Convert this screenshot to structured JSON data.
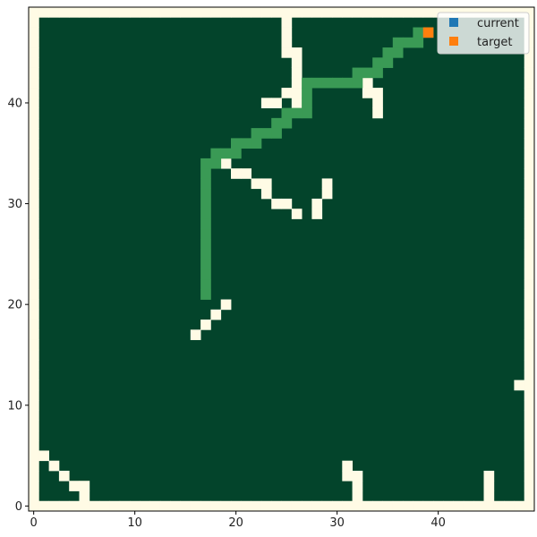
{
  "chart_data": {
    "type": "heatmap",
    "title": "",
    "xlabel": "",
    "ylabel": "",
    "xlim": [
      -0.5,
      49.5
    ],
    "ylim": [
      -0.5,
      49.5
    ],
    "x_ticks": [
      0,
      10,
      20,
      30,
      40
    ],
    "y_ticks": [
      0,
      10,
      20,
      30,
      40
    ],
    "grid": false,
    "legend_position": "top-right",
    "colors": {
      "background": "#03442b",
      "obstacle": "#fffbe5",
      "path": "#3a9a55",
      "current": "#1f77b4",
      "target": "#ff7f0e"
    },
    "legend": [
      {
        "name": "current",
        "color": "#1f77b4"
      },
      {
        "name": "target",
        "color": "#ff7f0e"
      }
    ],
    "obstacles": [
      [
        0,
        0
      ],
      [
        1,
        0
      ],
      [
        2,
        0
      ],
      [
        3,
        0
      ],
      [
        4,
        0
      ],
      [
        5,
        0
      ],
      [
        6,
        0
      ],
      [
        7,
        0
      ],
      [
        8,
        0
      ],
      [
        9,
        0
      ],
      [
        10,
        0
      ],
      [
        11,
        0
      ],
      [
        12,
        0
      ],
      [
        13,
        0
      ],
      [
        14,
        0
      ],
      [
        15,
        0
      ],
      [
        16,
        0
      ],
      [
        17,
        0
      ],
      [
        18,
        0
      ],
      [
        19,
        0
      ],
      [
        20,
        0
      ],
      [
        21,
        0
      ],
      [
        22,
        0
      ],
      [
        23,
        0
      ],
      [
        24,
        0
      ],
      [
        25,
        0
      ],
      [
        26,
        0
      ],
      [
        27,
        0
      ],
      [
        28,
        0
      ],
      [
        29,
        0
      ],
      [
        30,
        0
      ],
      [
        31,
        0
      ],
      [
        32,
        0
      ],
      [
        33,
        0
      ],
      [
        34,
        0
      ],
      [
        35,
        0
      ],
      [
        36,
        0
      ],
      [
        37,
        0
      ],
      [
        38,
        0
      ],
      [
        39,
        0
      ],
      [
        40,
        0
      ],
      [
        41,
        0
      ],
      [
        42,
        0
      ],
      [
        43,
        0
      ],
      [
        44,
        0
      ],
      [
        45,
        0
      ],
      [
        46,
        0
      ],
      [
        47,
        0
      ],
      [
        48,
        0
      ],
      [
        49,
        0
      ],
      [
        0,
        49
      ],
      [
        1,
        49
      ],
      [
        2,
        49
      ],
      [
        3,
        49
      ],
      [
        4,
        49
      ],
      [
        5,
        49
      ],
      [
        6,
        49
      ],
      [
        7,
        49
      ],
      [
        8,
        49
      ],
      [
        9,
        49
      ],
      [
        10,
        49
      ],
      [
        11,
        49
      ],
      [
        12,
        49
      ],
      [
        13,
        49
      ],
      [
        14,
        49
      ],
      [
        15,
        49
      ],
      [
        16,
        49
      ],
      [
        17,
        49
      ],
      [
        18,
        49
      ],
      [
        19,
        49
      ],
      [
        20,
        49
      ],
      [
        21,
        49
      ],
      [
        22,
        49
      ],
      [
        23,
        49
      ],
      [
        24,
        49
      ],
      [
        25,
        49
      ],
      [
        26,
        49
      ],
      [
        27,
        49
      ],
      [
        28,
        49
      ],
      [
        29,
        49
      ],
      [
        30,
        49
      ],
      [
        31,
        49
      ],
      [
        32,
        49
      ],
      [
        33,
        49
      ],
      [
        34,
        49
      ],
      [
        35,
        49
      ],
      [
        36,
        49
      ],
      [
        37,
        49
      ],
      [
        38,
        49
      ],
      [
        39,
        49
      ],
      [
        40,
        49
      ],
      [
        41,
        49
      ],
      [
        42,
        49
      ],
      [
        43,
        49
      ],
      [
        44,
        49
      ],
      [
        45,
        49
      ],
      [
        46,
        49
      ],
      [
        47,
        49
      ],
      [
        48,
        49
      ],
      [
        49,
        49
      ],
      [
        0,
        1
      ],
      [
        0,
        2
      ],
      [
        0,
        3
      ],
      [
        0,
        4
      ],
      [
        0,
        5
      ],
      [
        0,
        6
      ],
      [
        0,
        7
      ],
      [
        0,
        8
      ],
      [
        0,
        9
      ],
      [
        0,
        10
      ],
      [
        0,
        11
      ],
      [
        0,
        12
      ],
      [
        0,
        13
      ],
      [
        0,
        14
      ],
      [
        0,
        15
      ],
      [
        0,
        16
      ],
      [
        0,
        17
      ],
      [
        0,
        18
      ],
      [
        0,
        19
      ],
      [
        0,
        20
      ],
      [
        0,
        21
      ],
      [
        0,
        22
      ],
      [
        0,
        23
      ],
      [
        0,
        24
      ],
      [
        0,
        25
      ],
      [
        0,
        26
      ],
      [
        0,
        27
      ],
      [
        0,
        28
      ],
      [
        0,
        29
      ],
      [
        0,
        30
      ],
      [
        0,
        31
      ],
      [
        0,
        32
      ],
      [
        0,
        33
      ],
      [
        0,
        34
      ],
      [
        0,
        35
      ],
      [
        0,
        36
      ],
      [
        0,
        37
      ],
      [
        0,
        38
      ],
      [
        0,
        39
      ],
      [
        0,
        40
      ],
      [
        0,
        41
      ],
      [
        0,
        42
      ],
      [
        0,
        43
      ],
      [
        0,
        44
      ],
      [
        0,
        45
      ],
      [
        0,
        46
      ],
      [
        0,
        47
      ],
      [
        0,
        48
      ],
      [
        49,
        1
      ],
      [
        49,
        2
      ],
      [
        49,
        3
      ],
      [
        49,
        4
      ],
      [
        49,
        5
      ],
      [
        49,
        6
      ],
      [
        49,
        7
      ],
      [
        49,
        8
      ],
      [
        49,
        9
      ],
      [
        49,
        10
      ],
      [
        49,
        11
      ],
      [
        49,
        12
      ],
      [
        49,
        13
      ],
      [
        49,
        14
      ],
      [
        49,
        15
      ],
      [
        49,
        16
      ],
      [
        49,
        17
      ],
      [
        49,
        18
      ],
      [
        49,
        19
      ],
      [
        49,
        20
      ],
      [
        49,
        21
      ],
      [
        49,
        22
      ],
      [
        49,
        23
      ],
      [
        49,
        24
      ],
      [
        49,
        25
      ],
      [
        49,
        26
      ],
      [
        49,
        27
      ],
      [
        49,
        28
      ],
      [
        49,
        29
      ],
      [
        49,
        30
      ],
      [
        49,
        31
      ],
      [
        49,
        32
      ],
      [
        49,
        33
      ],
      [
        49,
        34
      ],
      [
        49,
        35
      ],
      [
        49,
        36
      ],
      [
        49,
        37
      ],
      [
        49,
        38
      ],
      [
        49,
        39
      ],
      [
        49,
        40
      ],
      [
        49,
        41
      ],
      [
        49,
        42
      ],
      [
        49,
        43
      ],
      [
        49,
        44
      ],
      [
        49,
        45
      ],
      [
        49,
        46
      ],
      [
        49,
        47
      ],
      [
        49,
        48
      ],
      [
        1,
        5
      ],
      [
        2,
        4
      ],
      [
        3,
        3
      ],
      [
        4,
        2
      ],
      [
        5,
        2
      ],
      [
        5,
        1
      ],
      [
        16,
        17
      ],
      [
        17,
        18
      ],
      [
        18,
        19
      ],
      [
        19,
        20
      ],
      [
        48,
        12
      ],
      [
        31,
        3
      ],
      [
        31,
        4
      ],
      [
        32,
        1
      ],
      [
        32,
        2
      ],
      [
        32,
        3
      ],
      [
        45,
        1
      ],
      [
        45,
        2
      ],
      [
        45,
        3
      ],
      [
        19,
        34
      ],
      [
        20,
        33
      ],
      [
        21,
        33
      ],
      [
        22,
        32
      ],
      [
        23,
        32
      ],
      [
        23,
        31
      ],
      [
        24,
        30
      ],
      [
        25,
        30
      ],
      [
        26,
        29
      ],
      [
        28,
        29
      ],
      [
        28,
        30
      ],
      [
        29,
        31
      ],
      [
        29,
        32
      ],
      [
        23,
        40
      ],
      [
        24,
        40
      ],
      [
        25,
        41
      ],
      [
        26,
        40
      ],
      [
        26,
        41
      ],
      [
        26,
        42
      ],
      [
        26,
        43
      ],
      [
        26,
        44
      ],
      [
        26,
        45
      ],
      [
        25,
        45
      ],
      [
        25,
        46
      ],
      [
        25,
        47
      ],
      [
        25,
        48
      ],
      [
        33,
        41
      ],
      [
        33,
        42
      ],
      [
        34,
        41
      ],
      [
        34,
        40
      ],
      [
        34,
        39
      ]
    ],
    "path": [
      [
        17,
        21
      ],
      [
        17,
        22
      ],
      [
        17,
        23
      ],
      [
        17,
        24
      ],
      [
        17,
        25
      ],
      [
        17,
        26
      ],
      [
        17,
        27
      ],
      [
        17,
        28
      ],
      [
        17,
        29
      ],
      [
        17,
        30
      ],
      [
        17,
        31
      ],
      [
        17,
        32
      ],
      [
        17,
        33
      ],
      [
        17,
        34
      ],
      [
        18,
        34
      ],
      [
        18,
        35
      ],
      [
        19,
        35
      ],
      [
        20,
        35
      ],
      [
        20,
        36
      ],
      [
        21,
        36
      ],
      [
        22,
        36
      ],
      [
        22,
        37
      ],
      [
        23,
        37
      ],
      [
        24,
        37
      ],
      [
        24,
        38
      ],
      [
        25,
        38
      ],
      [
        25,
        39
      ],
      [
        26,
        39
      ],
      [
        27,
        39
      ],
      [
        27,
        40
      ],
      [
        27,
        41
      ],
      [
        27,
        42
      ],
      [
        28,
        42
      ],
      [
        29,
        42
      ],
      [
        30,
        42
      ],
      [
        31,
        42
      ],
      [
        32,
        42
      ],
      [
        32,
        43
      ],
      [
        33,
        43
      ],
      [
        34,
        43
      ],
      [
        34,
        44
      ],
      [
        35,
        44
      ],
      [
        35,
        45
      ],
      [
        36,
        45
      ],
      [
        36,
        46
      ],
      [
        37,
        46
      ],
      [
        38,
        46
      ],
      [
        38,
        47
      ]
    ],
    "current": [
      39,
      47
    ],
    "target": [
      39,
      47
    ]
  }
}
